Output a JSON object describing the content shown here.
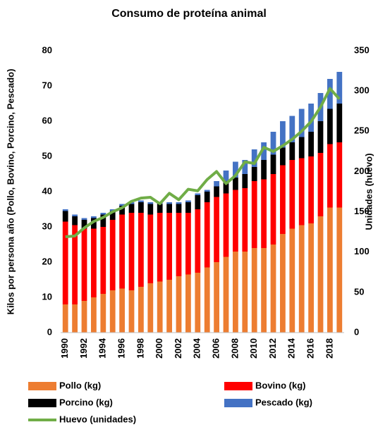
{
  "chart_data": {
    "type": "bar",
    "stacked": true,
    "title": "Consumo de proteína animal",
    "y_label": "Kilos por persona año (Pollo, Bovino, Porcino, Pescado)",
    "y2_label": "Unidades (huevo)",
    "categories": [
      "1990",
      null,
      "1992",
      null,
      "1994",
      null,
      "1996",
      null,
      "1998",
      null,
      "2000",
      null,
      "2002",
      null,
      "2004",
      null,
      "2006",
      null,
      "2008",
      null,
      "2010",
      null,
      "2012",
      null,
      "2014",
      null,
      "2016",
      null,
      "2018",
      null
    ],
    "series": [
      {
        "name": "Pollo (kg)",
        "type": "bar",
        "color": "#ed7d31",
        "values": [
          8,
          8,
          9,
          10,
          11,
          12,
          12.5,
          12,
          13,
          14,
          14.5,
          15,
          16,
          16.5,
          17,
          18.5,
          20,
          21.5,
          23,
          23,
          24,
          24,
          25,
          28,
          29.5,
          30.5,
          31,
          33,
          35.5,
          35.5
        ]
      },
      {
        "name": "Bovino (kg)",
        "type": "bar",
        "color": "#ff0000",
        "values": [
          23.5,
          22.5,
          20.5,
          19.5,
          19,
          20,
          21,
          22,
          21,
          19.5,
          19.5,
          19,
          18,
          17.5,
          18,
          18.5,
          18.5,
          18,
          17.5,
          18,
          19,
          19.5,
          20,
          19.5,
          19.5,
          19,
          19,
          18,
          18,
          18.5
        ]
      },
      {
        "name": "Porcino (kg)",
        "type": "bar",
        "color": "#000000",
        "values": [
          3,
          2.5,
          2.5,
          3,
          3.5,
          2.5,
          2.5,
          2.5,
          3,
          3,
          2.5,
          2.5,
          2.5,
          3,
          4,
          3,
          3,
          3.5,
          3.5,
          4,
          4,
          5.5,
          5.5,
          5,
          5,
          6,
          7,
          9,
          10,
          11
        ]
      },
      {
        "name": "Pescado (kg)",
        "type": "bar",
        "color": "#4472c4",
        "values": [
          0.5,
          0.5,
          0.5,
          0.5,
          0.5,
          0.5,
          0.5,
          0.5,
          0.5,
          0.5,
          0.5,
          0.5,
          0.5,
          0.5,
          0.5,
          0.5,
          1.5,
          3,
          4.5,
          4,
          5,
          5,
          6.5,
          7.5,
          7.5,
          8,
          8,
          8,
          8.5,
          9
        ]
      },
      {
        "name": "Huevo (unidades)",
        "type": "line",
        "axis": "y2",
        "color": "#70ad47",
        "values": [
          119,
          120,
          130,
          138,
          143,
          150,
          155,
          163,
          167,
          168,
          160,
          173,
          165,
          178,
          176,
          190,
          200,
          185,
          195,
          212,
          210,
          230,
          225,
          232,
          240,
          250,
          262,
          280,
          303,
          290
        ]
      }
    ],
    "ylim": [
      0,
      80
    ],
    "yticks": [
      0,
      10,
      20,
      30,
      40,
      50,
      60,
      70,
      80
    ],
    "y2lim": [
      0,
      350
    ],
    "y2ticks": [
      0,
      50,
      100,
      150,
      200,
      250,
      300,
      350
    ],
    "grid": false,
    "legend": "bottom"
  }
}
